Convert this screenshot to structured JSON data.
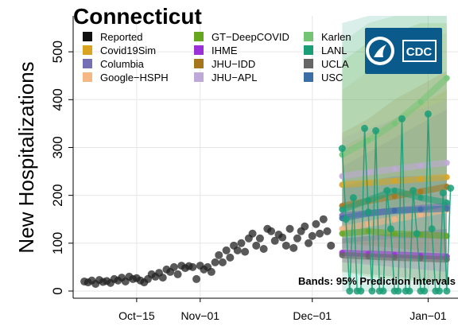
{
  "chart_data": {
    "type": "line",
    "title": "Connecticut",
    "ylabel": "New Hospitalizations",
    "xlabel": "",
    "annotation": "Bands: 95% Prediction Intervals",
    "logo_text": "CDC",
    "ylim": [
      -15,
      575
    ],
    "xlim": [
      "2020-09-28",
      "2021-01-09"
    ],
    "yticks": [
      0,
      100,
      200,
      300,
      400,
      500
    ],
    "xticks": [
      {
        "date": "2020-10-15",
        "label": "Oct−15"
      },
      {
        "date": "2020-11-01",
        "label": "Nov−01"
      },
      {
        "date": "2020-12-01",
        "label": "Dec−01"
      },
      {
        "date": "2021-01-01",
        "label": "Jan−01"
      }
    ],
    "grid": true,
    "legend_position": "top-left",
    "legend": [
      {
        "name": "Reported",
        "color": "#111111"
      },
      {
        "name": "Covid19Sim",
        "color": "#d9a521"
      },
      {
        "name": "Columbia",
        "color": "#7570b3"
      },
      {
        "name": "Google−HSPH",
        "color": "#f5b783"
      },
      {
        "name": "GT−DeepCOVID",
        "color": "#66a61e"
      },
      {
        "name": "IHME",
        "color": "#9b30d9"
      },
      {
        "name": "JHU−IDD",
        "color": "#a6761d"
      },
      {
        "name": "JHU−APL",
        "color": "#bfa9d8"
      },
      {
        "name": "Karlen",
        "color": "#74c476"
      },
      {
        "name": "LANL",
        "color": "#1b9e77"
      },
      {
        "name": "UCLA",
        "color": "#666666"
      },
      {
        "name": "USC",
        "color": "#3a6ea5"
      }
    ],
    "reported": {
      "x": [
        "2020-10-01",
        "2020-10-02",
        "2020-10-03",
        "2020-10-04",
        "2020-10-05",
        "2020-10-06",
        "2020-10-07",
        "2020-10-08",
        "2020-10-09",
        "2020-10-10",
        "2020-10-11",
        "2020-10-12",
        "2020-10-13",
        "2020-10-14",
        "2020-10-15",
        "2020-10-16",
        "2020-10-17",
        "2020-10-18",
        "2020-10-19",
        "2020-10-20",
        "2020-10-21",
        "2020-10-22",
        "2020-10-23",
        "2020-10-24",
        "2020-10-25",
        "2020-10-26",
        "2020-10-27",
        "2020-10-28",
        "2020-10-29",
        "2020-10-30",
        "2020-10-31",
        "2020-11-01",
        "2020-11-02",
        "2020-11-03",
        "2020-11-04",
        "2020-11-05",
        "2020-11-06",
        "2020-11-07",
        "2020-11-08",
        "2020-11-09",
        "2020-11-10",
        "2020-11-11",
        "2020-11-12",
        "2020-11-13",
        "2020-11-14",
        "2020-11-15",
        "2020-11-16",
        "2020-11-17",
        "2020-11-18",
        "2020-11-19",
        "2020-11-20",
        "2020-11-21",
        "2020-11-22",
        "2020-11-23",
        "2020-11-24",
        "2020-11-25",
        "2020-11-26",
        "2020-11-27",
        "2020-11-28",
        "2020-11-29",
        "2020-11-30",
        "2020-12-01",
        "2020-12-02",
        "2020-12-03",
        "2020-12-04",
        "2020-12-05",
        "2020-12-06"
      ],
      "y": [
        20,
        18,
        22,
        15,
        23,
        19,
        21,
        17,
        25,
        22,
        28,
        20,
        30,
        25,
        27,
        22,
        18,
        25,
        35,
        30,
        38,
        28,
        45,
        40,
        50,
        35,
        53,
        48,
        52,
        50,
        25,
        53,
        45,
        50,
        40,
        60,
        75,
        60,
        85,
        70,
        95,
        85,
        100,
        82,
        110,
        120,
        95,
        110,
        88,
        130,
        125,
        105,
        118,
        112,
        95,
        130,
        90,
        110,
        125,
        135,
        100,
        115,
        140,
        120,
        150,
        125,
        95
      ]
    },
    "forecast_x": [
      "2020-12-09",
      "2020-12-16",
      "2020-12-23",
      "2020-12-30",
      "2021-01-06"
    ],
    "forecasts": [
      {
        "name": "Covid19Sim",
        "color": "#d9a521",
        "values": [
          222,
          226,
          230,
          234,
          238
        ],
        "lo": [
          170,
          172,
          175,
          178,
          180
        ],
        "hi": [
          300,
          330,
          360,
          390,
          420
        ]
      },
      {
        "name": "Columbia",
        "color": "#7570b3",
        "values": [
          158,
          163,
          168,
          173,
          178
        ],
        "lo": [
          90,
          85,
          80,
          75,
          70
        ],
        "hi": [
          260,
          290,
          320,
          350,
          380
        ]
      },
      {
        "name": "Google−HSPH",
        "color": "#f5b783",
        "values": [
          130,
          140,
          150,
          160,
          170
        ],
        "lo": [
          60,
          60,
          60,
          60,
          60
        ],
        "hi": [
          420,
          460,
          500,
          520,
          540
        ]
      },
      {
        "name": "GT−DeepCOVID",
        "color": "#66a61e",
        "values": [
          120,
          125,
          120,
          118,
          115
        ],
        "lo": [
          40,
          30,
          25,
          20,
          20
        ],
        "hi": [
          480,
          520,
          540,
          560,
          560
        ]
      },
      {
        "name": "IHME",
        "color": "#9b30d9",
        "values": [
          80,
          78,
          76,
          74,
          72
        ],
        "lo": [
          60,
          55,
          50,
          45,
          40
        ],
        "hi": [
          110,
          115,
          120,
          125,
          130
        ]
      },
      {
        "name": "JHU−IDD",
        "color": "#a6761d",
        "values": [
          178,
          188,
          198,
          208,
          218
        ],
        "lo": [
          100,
          95,
          90,
          85,
          80
        ],
        "hi": [
          330,
          360,
          400,
          430,
          460
        ]
      },
      {
        "name": "JHU−APL",
        "color": "#bfa9d8",
        "values": [
          240,
          248,
          255,
          262,
          268
        ],
        "lo": [
          180,
          170,
          160,
          150,
          140
        ],
        "hi": [
          320,
          340,
          360,
          380,
          400
        ]
      },
      {
        "name": "Karlen",
        "color": "#74c476",
        "values": [
          285,
          315,
          350,
          395,
          445
        ],
        "lo": [
          150,
          160,
          175,
          195,
          215
        ],
        "hi": [
          520,
          560,
          575,
          575,
          575
        ]
      },
      {
        "name": "LANL",
        "color": "#1b9e77",
        "values": [
          170,
          190,
          210,
          195,
          185
        ],
        "lo": [
          0,
          0,
          0,
          0,
          0
        ],
        "hi": [
          560,
          575,
          575,
          575,
          575
        ]
      },
      {
        "name": "UCLA",
        "color": "#666666",
        "values": [
          75,
          72,
          70,
          68,
          66
        ],
        "lo": [
          40,
          35,
          30,
          25,
          20
        ],
        "hi": [
          110,
          115,
          120,
          125,
          130
        ]
      },
      {
        "name": "USC",
        "color": "#3a6ea5",
        "values": [
          152,
          162,
          168,
          170,
          172
        ],
        "lo": [
          100,
          105,
          110,
          110,
          110
        ],
        "hi": [
          220,
          230,
          240,
          240,
          240
        ]
      }
    ],
    "lanl_points": {
      "x": [
        "2020-12-09",
        "2020-12-10",
        "2020-12-11",
        "2020-12-12",
        "2020-12-13",
        "2020-12-14",
        "2020-12-15",
        "2020-12-16",
        "2020-12-17",
        "2020-12-18",
        "2020-12-19",
        "2020-12-20",
        "2020-12-21",
        "2020-12-22",
        "2020-12-23",
        "2020-12-24",
        "2020-12-25",
        "2020-12-26",
        "2020-12-27",
        "2020-12-28",
        "2020-12-29",
        "2020-12-30",
        "2020-12-31",
        "2021-01-01",
        "2021-01-02",
        "2021-01-03",
        "2021-01-04",
        "2021-01-05",
        "2021-01-06",
        "2021-01-07"
      ],
      "y": [
        298,
        150,
        0,
        195,
        0,
        0,
        340,
        165,
        0,
        335,
        0,
        0,
        210,
        130,
        0,
        0,
        360,
        0,
        0,
        210,
        120,
        0,
        0,
        370,
        130,
        0,
        0,
        205,
        0,
        215
      ]
    }
  }
}
